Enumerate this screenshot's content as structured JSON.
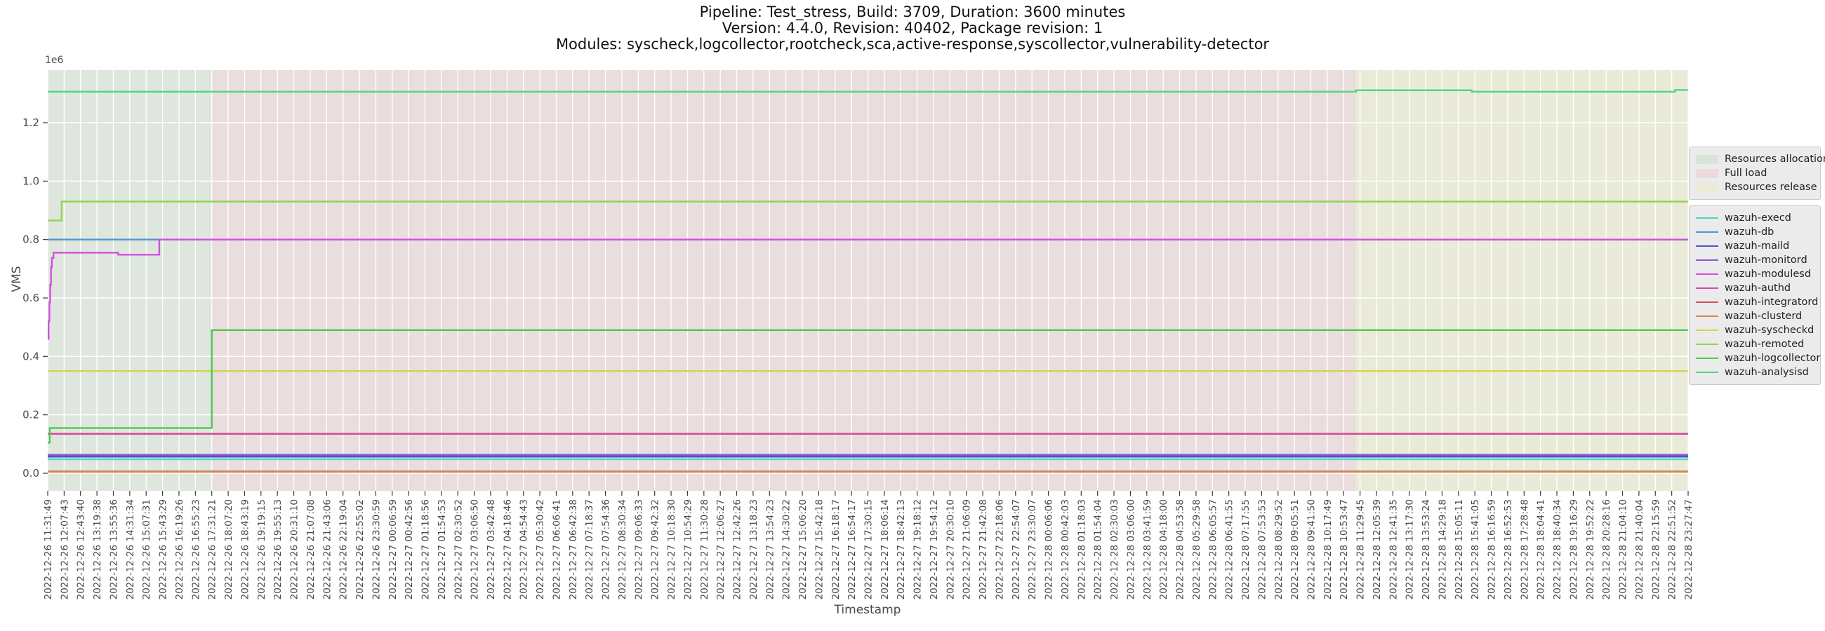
{
  "title": {
    "line1": "Pipeline: Test_stress, Build: 3709, Duration: 3600 minutes",
    "line2": "Version: 4.4.0, Revision: 40402, Package revision: 1",
    "line3": "Modules: syscheck,logcollector,rootcheck,sca,active-response,syscollector,vulnerability-detector"
  },
  "axes": {
    "ylabel": "VMS",
    "xlabel": "Timestamp",
    "offset_text": "1e6"
  },
  "phase_legend": {
    "items": [
      {
        "label": "Resources allocation",
        "color": "#d9e4d8"
      },
      {
        "label": "Full load",
        "color": "#ecdada"
      },
      {
        "label": "Resources release",
        "color": "#ececd6"
      }
    ]
  },
  "chart_data": {
    "type": "line",
    "title": "Pipeline: Test_stress, Build: 3709, Duration: 3600 minutes | Version: 4.4.0, Revision: 40402, Package revision: 1 | Modules: syscheck,logcollector,rootcheck,sca,active-response,syscollector,vulnerability-detector",
    "xlabel": "Timestamp",
    "ylabel": "VMS",
    "y_offset_text": "1e6",
    "ylim": [
      -60000,
      1380000
    ],
    "ytick_values": [
      0,
      200000,
      400000,
      600000,
      800000,
      1000000,
      1200000
    ],
    "ytick_labels": [
      "0.0",
      "0.2",
      "0.4",
      "0.6",
      "0.8",
      "1.0",
      "1.2"
    ],
    "grid": "white-on-shaded-background",
    "legend_position": "outside-right",
    "x_tick_labels": [
      "2022-12-26 11:31:49",
      "2022-12-26 12:07:43",
      "2022-12-26 12:43:40",
      "2022-12-26 13:19:38",
      "2022-12-26 13:55:36",
      "2022-12-26 14:31:34",
      "2022-12-26 15:07:31",
      "2022-12-26 15:43:29",
      "2022-12-26 16:19:26",
      "2022-12-26 16:55:23",
      "2022-12-26 17:31:21",
      "2022-12-26 18:07:20",
      "2022-12-26 18:43:19",
      "2022-12-26 19:19:15",
      "2022-12-26 19:55:13",
      "2022-12-26 20:31:10",
      "2022-12-26 21:07:08",
      "2022-12-26 21:43:06",
      "2022-12-26 22:19:04",
      "2022-12-26 22:55:02",
      "2022-12-26 23:30:59",
      "2022-12-27 00:06:59",
      "2022-12-27 00:42:56",
      "2022-12-27 01:18:56",
      "2022-12-27 01:54:53",
      "2022-12-27 02:30:52",
      "2022-12-27 03:06:50",
      "2022-12-27 03:42:48",
      "2022-12-27 04:18:46",
      "2022-12-27 04:54:43",
      "2022-12-27 05:30:42",
      "2022-12-27 06:06:41",
      "2022-12-27 06:42:38",
      "2022-12-27 07:18:37",
      "2022-12-27 07:54:36",
      "2022-12-27 08:30:34",
      "2022-12-27 09:06:33",
      "2022-12-27 09:42:32",
      "2022-12-27 10:18:30",
      "2022-12-27 10:54:29",
      "2022-12-27 11:30:28",
      "2022-12-27 12:06:27",
      "2022-12-27 12:42:26",
      "2022-12-27 13:18:23",
      "2022-12-27 13:54:23",
      "2022-12-27 14:30:22",
      "2022-12-27 15:06:20",
      "2022-12-27 15:42:18",
      "2022-12-27 16:18:17",
      "2022-12-27 16:54:17",
      "2022-12-27 17:30:15",
      "2022-12-27 18:06:14",
      "2022-12-27 18:42:13",
      "2022-12-27 19:18:12",
      "2022-12-27 19:54:12",
      "2022-12-27 20:30:10",
      "2022-12-27 21:06:09",
      "2022-12-27 21:42:08",
      "2022-12-27 22:18:06",
      "2022-12-27 22:54:07",
      "2022-12-27 23:30:07",
      "2022-12-28 00:06:06",
      "2022-12-28 00:42:03",
      "2022-12-28 01:18:03",
      "2022-12-28 01:54:04",
      "2022-12-28 02:30:03",
      "2022-12-28 03:06:00",
      "2022-12-28 03:41:59",
      "2022-12-28 04:18:00",
      "2022-12-28 04:53:58",
      "2022-12-28 05:29:58",
      "2022-12-28 06:05:57",
      "2022-12-28 06:41:55",
      "2022-12-28 07:17:55",
      "2022-12-28 07:53:53",
      "2022-12-28 08:29:52",
      "2022-12-28 09:05:51",
      "2022-12-28 09:41:50",
      "2022-12-28 10:17:49",
      "2022-12-28 10:53:47",
      "2022-12-28 11:29:45",
      "2022-12-28 12:05:39",
      "2022-12-28 12:41:35",
      "2022-12-28 13:17:30",
      "2022-12-28 13:53:24",
      "2022-12-28 14:29:18",
      "2022-12-28 15:05:11",
      "2022-12-28 15:41:05",
      "2022-12-28 16:16:59",
      "2022-12-28 16:52:53",
      "2022-12-28 17:28:48",
      "2022-12-28 18:04:41",
      "2022-12-28 18:40:34",
      "2022-12-28 19:16:29",
      "2022-12-28 19:52:22",
      "2022-12-28 20:28:16",
      "2022-12-28 21:04:10",
      "2022-12-28 21:40:04",
      "2022-12-28 22:15:59",
      "2022-12-28 22:51:52",
      "2022-12-28 23:27:47"
    ],
    "phases": [
      {
        "label": "Resources allocation",
        "band_color": "#dee6dd",
        "start_index": 0,
        "end_index": 10,
        "start_label": "2022-12-26 11:31:49",
        "end_label": "2022-12-26 17:31:21"
      },
      {
        "label": "Full load",
        "band_color": "#e9dddd",
        "start_index": 10,
        "end_index": 79.75,
        "start_label": "2022-12-26 17:31:21",
        "end_label": "2022-12-28 11:29:45"
      },
      {
        "label": "Resources release",
        "band_color": "#eaead9",
        "start_index": 79.75,
        "end_index": 100,
        "start_label": "2022-12-28 11:29:45",
        "end_label": "2022-12-28 23:27:47"
      }
    ],
    "series": [
      {
        "name": "wazuh-execd",
        "color": "#50d5c8",
        "points": [
          [
            0,
            48000
          ],
          [
            100,
            48000
          ]
        ]
      },
      {
        "name": "wazuh-db",
        "color": "#5494d4",
        "points": [
          [
            0,
            800000
          ],
          [
            100,
            800000
          ]
        ]
      },
      {
        "name": "wazuh-maild",
        "color": "#4c55cf",
        "points": [
          [
            0,
            57000
          ],
          [
            100,
            57000
          ]
        ]
      },
      {
        "name": "wazuh-monitord",
        "color": "#8d55d4",
        "points": [
          [
            0,
            63000
          ],
          [
            100,
            63000
          ]
        ]
      },
      {
        "name": "wazuh-modulesd",
        "color": "#d24fe0",
        "points": [
          [
            0,
            460000
          ],
          [
            0.05,
            520000
          ],
          [
            0.1,
            585000
          ],
          [
            0.15,
            645000
          ],
          [
            0.2,
            705000
          ],
          [
            0.25,
            737000
          ],
          [
            0.35,
            755000
          ],
          [
            4.3,
            748000
          ],
          [
            6.8,
            800000
          ],
          [
            100,
            800000
          ]
        ]
      },
      {
        "name": "wazuh-authd",
        "color": "#d6489b",
        "points": [
          [
            0,
            135000
          ],
          [
            100,
            135000
          ]
        ]
      },
      {
        "name": "wazuh-integratord",
        "color": "#d65252",
        "points": [
          [
            0,
            6000
          ],
          [
            100,
            6000
          ]
        ]
      },
      {
        "name": "wazuh-clusterd",
        "color": "#cc8a4d",
        "points": [
          [
            0,
            5000
          ],
          [
            100,
            5000
          ]
        ]
      },
      {
        "name": "wazuh-syscheckd",
        "color": "#d5d54d",
        "points": [
          [
            0,
            350000
          ],
          [
            100,
            350000
          ]
        ]
      },
      {
        "name": "wazuh-remoted",
        "color": "#92d54b",
        "points": [
          [
            0,
            865000
          ],
          [
            0.85,
            930000
          ],
          [
            100,
            930000
          ]
        ]
      },
      {
        "name": "wazuh-logcollector",
        "color": "#50c750",
        "points": [
          [
            0,
            105000
          ],
          [
            0.12,
            155000
          ],
          [
            10,
            490000
          ],
          [
            100,
            490000
          ]
        ]
      },
      {
        "name": "wazuh-analysisd",
        "color": "#50d586",
        "points": [
          [
            0,
            1306000
          ],
          [
            79.75,
            1311000
          ],
          [
            86.8,
            1306000
          ],
          [
            99.2,
            1312000
          ],
          [
            100,
            1312000
          ]
        ]
      }
    ]
  }
}
